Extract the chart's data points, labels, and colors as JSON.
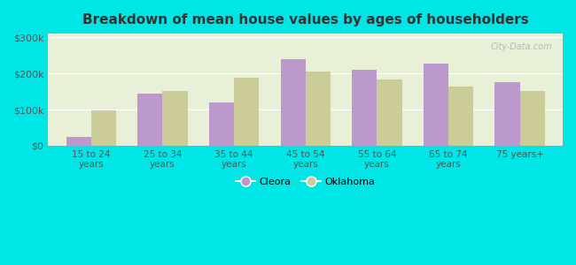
{
  "title": "Breakdown of mean house values by ages of householders",
  "categories": [
    "15 to 24\nyears",
    "25 to 34\nyears",
    "35 to 44\nyears",
    "45 to 54\nyears",
    "55 to 64\nyears",
    "65 to 74\nyears",
    "75 years+"
  ],
  "cleora": [
    25000,
    145000,
    120000,
    240000,
    210000,
    228000,
    175000
  ],
  "oklahoma": [
    97000,
    152000,
    188000,
    205000,
    182000,
    163000,
    152000
  ],
  "cleora_color": "#bb99cc",
  "oklahoma_color": "#cccc99",
  "background_color": "#e8f0d8",
  "outer_background": "#00e5e5",
  "title_color": "#333333",
  "ylim": [
    0,
    310000
  ],
  "yticks": [
    0,
    100000,
    200000,
    300000
  ],
  "ytick_labels": [
    "$0",
    "$100k",
    "$200k",
    "$300k"
  ],
  "watermark": "City-Data.com",
  "legend_labels": [
    "Cleora",
    "Oklahoma"
  ]
}
